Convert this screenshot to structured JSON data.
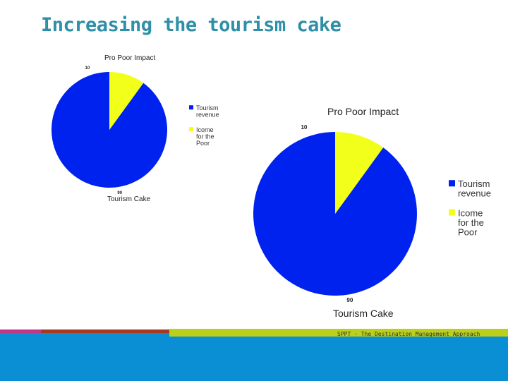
{
  "slide": {
    "title": "Increasing the tourism cake",
    "footer_text": "SPPT - The Destination Management Approach"
  },
  "colors": {
    "title": "#2e8fa8",
    "footer_band": "#0a8fd4",
    "stripe_pink": "#c2378a",
    "stripe_brown": "#a63a20",
    "stripe_green": "#bcd019"
  },
  "chart_data": [
    {
      "type": "pie",
      "title": "Pro Poor Impact",
      "xlabel": "Tourism Cake",
      "slices": [
        {
          "label": "Tourism revenue",
          "legend_lines": [
            "Tourism",
            "revenue"
          ],
          "value": 90,
          "color": "#0022ee"
        },
        {
          "label": "Icome for the Poor",
          "legend_lines": [
            "Icome",
            "for the",
            "Poor"
          ],
          "value": 10,
          "color": "#f2ff1a"
        }
      ],
      "legend": "right"
    },
    {
      "type": "pie",
      "title": "Pro Poor Impact",
      "xlabel": "Tourism Cake",
      "slices": [
        {
          "label": "Tourism revenue",
          "legend_lines": [
            "Tourism",
            "revenue"
          ],
          "value": 90,
          "color": "#0022ee"
        },
        {
          "label": "Icome for the Poor",
          "legend_lines": [
            "Icome",
            "for the",
            "Poor"
          ],
          "value": 10,
          "color": "#f2ff1a"
        }
      ],
      "legend": "right"
    }
  ]
}
